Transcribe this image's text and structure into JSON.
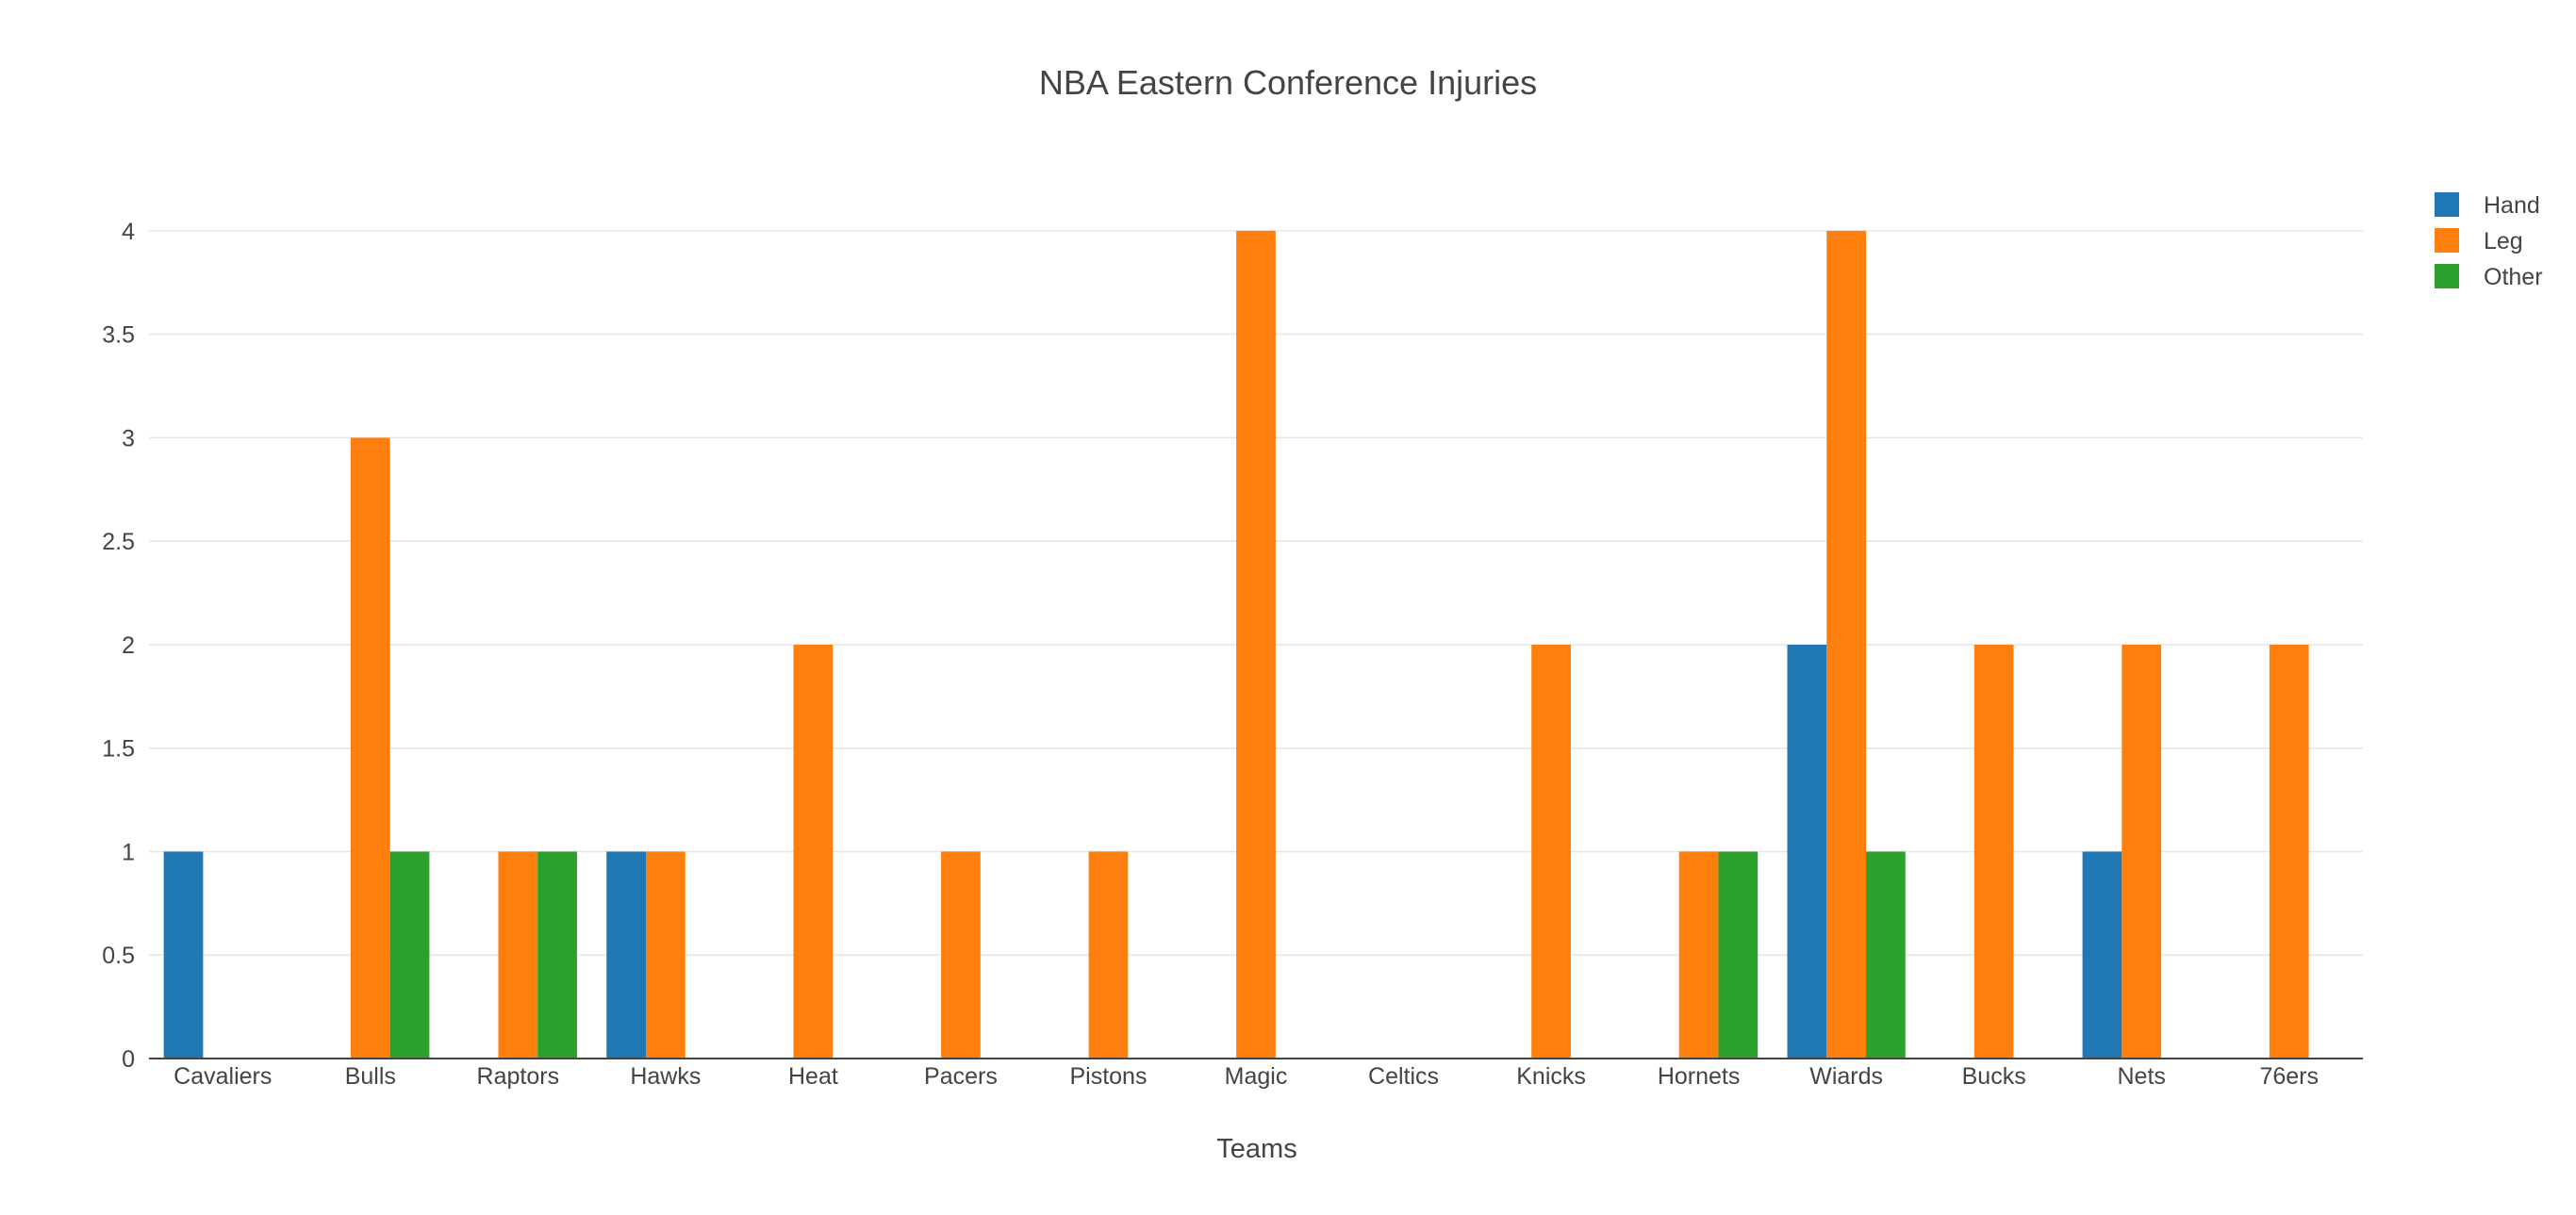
{
  "chart_data": {
    "type": "bar",
    "title": "NBA Eastern Conference Injuries",
    "xlabel": "Teams",
    "ylabel": "",
    "categories": [
      "Cavaliers",
      "Bulls",
      "Raptors",
      "Hawks",
      "Heat",
      "Pacers",
      "Pistons",
      "Magic",
      "Celtics",
      "Knicks",
      "Hornets",
      "Wiards",
      "Bucks",
      "Nets",
      "76ers"
    ],
    "series": [
      {
        "name": "Hand",
        "color": "#1f77b4",
        "values": [
          1,
          0,
          0,
          1,
          0,
          0,
          0,
          0,
          0,
          0,
          0,
          2,
          0,
          1,
          0
        ]
      },
      {
        "name": "Leg",
        "color": "#ff7f0e",
        "values": [
          0,
          3,
          1,
          1,
          2,
          1,
          1,
          4,
          0,
          2,
          1,
          4,
          2,
          2,
          2
        ]
      },
      {
        "name": "Other",
        "color": "#2ca02c",
        "values": [
          0,
          1,
          1,
          0,
          0,
          0,
          0,
          0,
          0,
          0,
          1,
          1,
          0,
          0,
          0
        ]
      }
    ],
    "ylim": [
      0,
      4.25
    ],
    "yticks": [
      0,
      0.5,
      1,
      1.5,
      2,
      2.5,
      3,
      3.5,
      4
    ],
    "ytick_labels": [
      "0",
      "0.5",
      "1",
      "1.5",
      "2",
      "2.5",
      "3",
      "3.5",
      "4"
    ],
    "grid": true,
    "legend_position": "top-right"
  }
}
